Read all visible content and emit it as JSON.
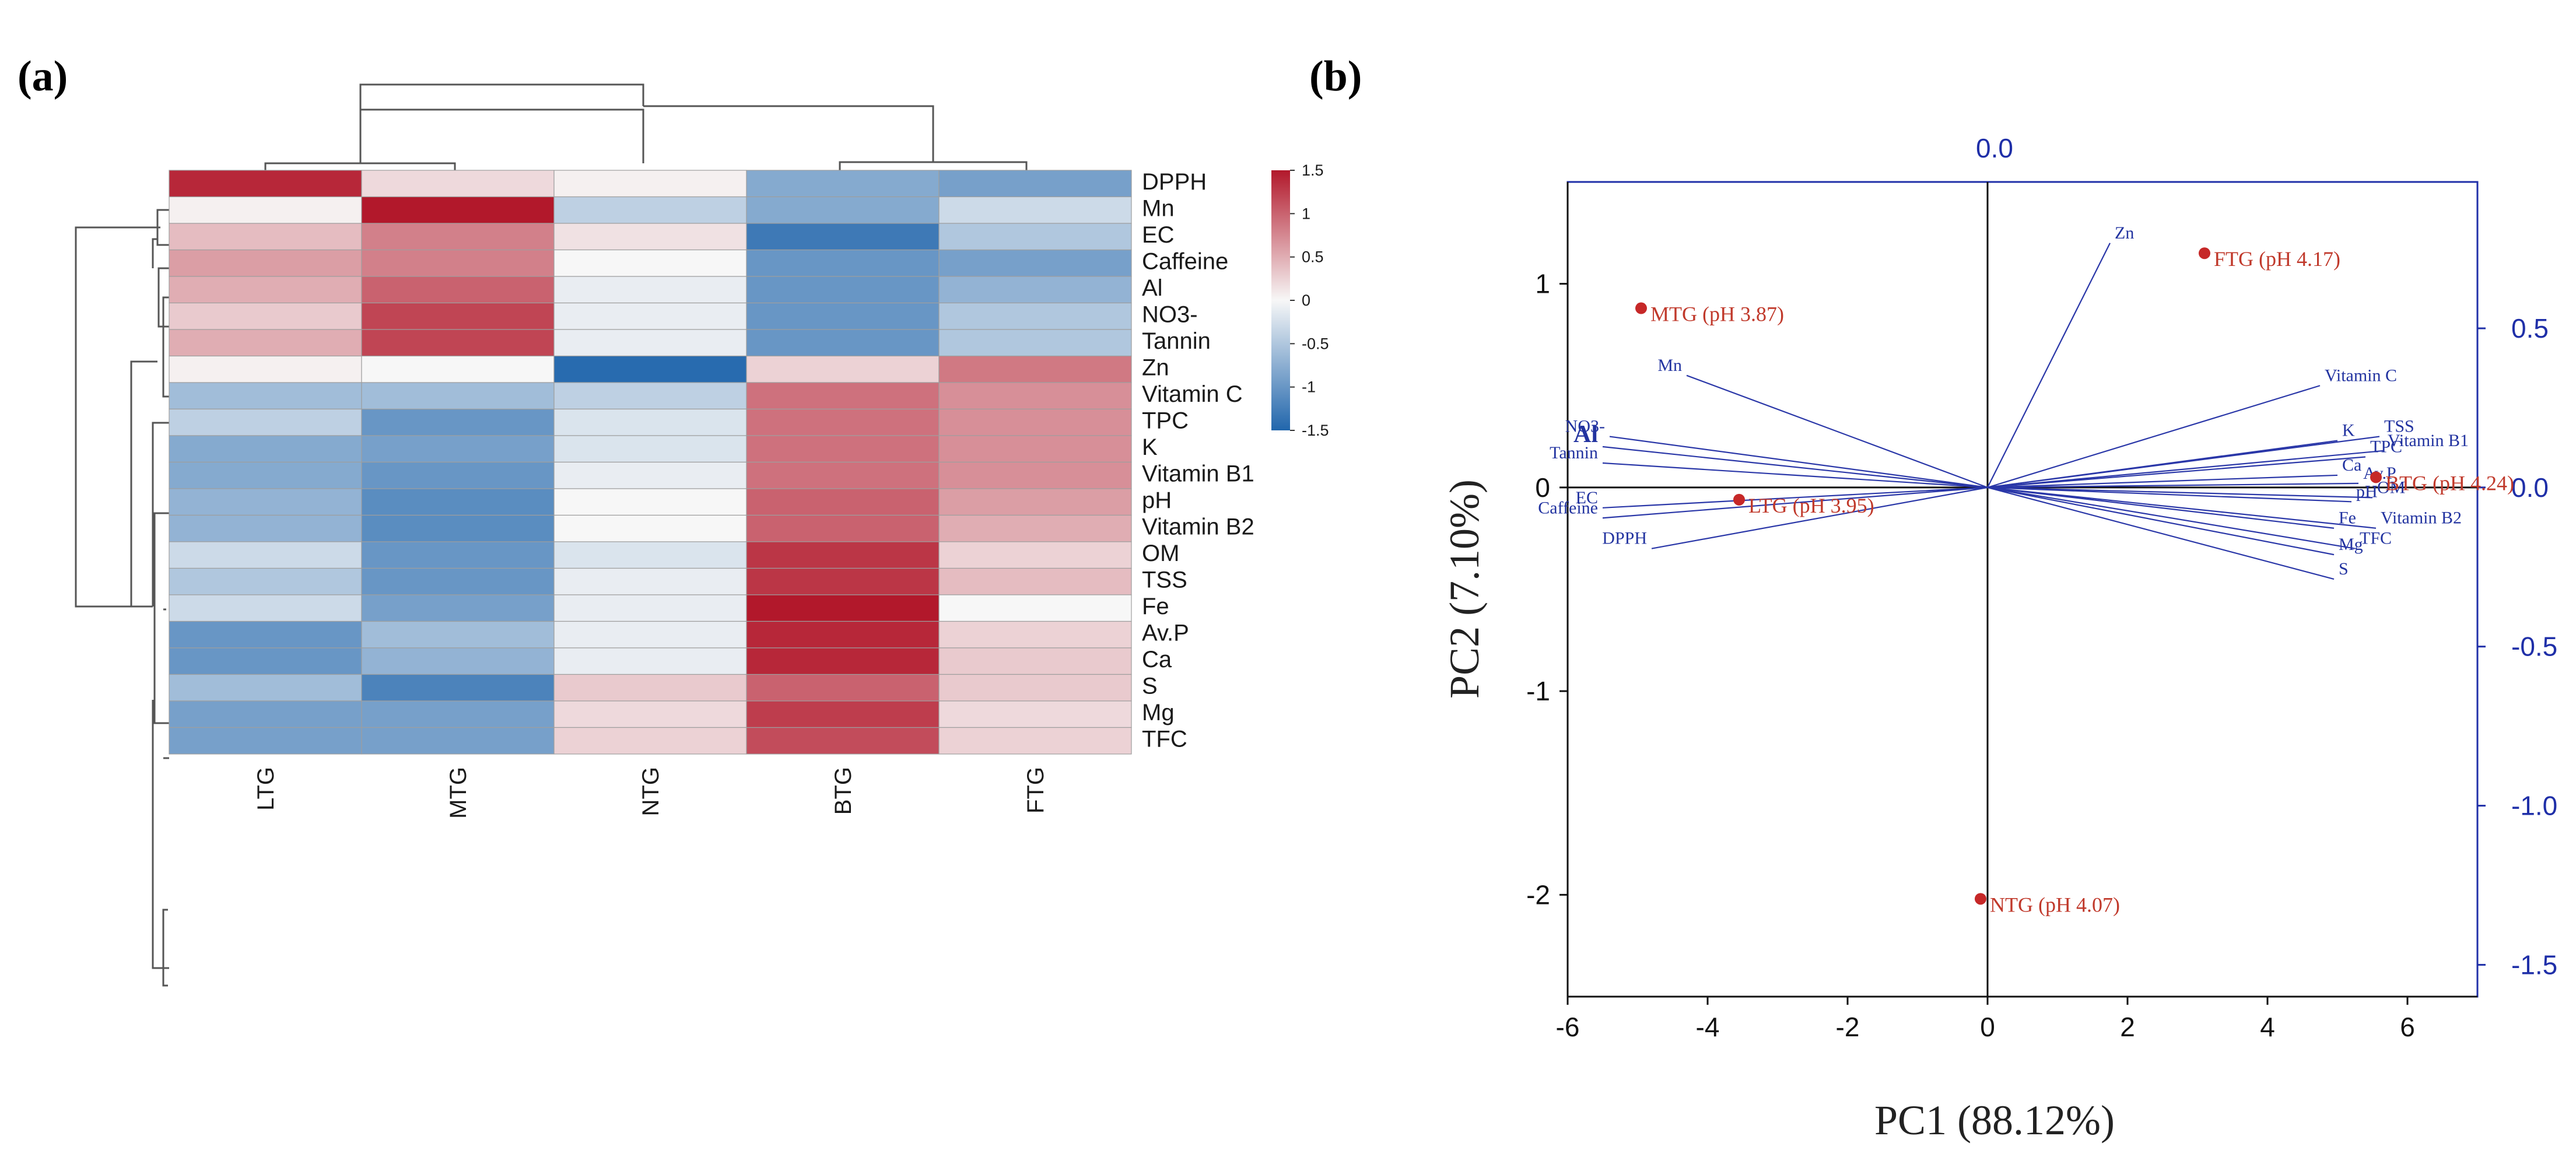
{
  "panels": {
    "a_label": "(a)",
    "b_label": "(b)"
  },
  "chart_data": [
    {
      "type": "heatmap",
      "title": "",
      "columns": [
        "LTG",
        "MTG",
        "NTG",
        "BTG",
        "FTG"
      ],
      "rows": [
        "DPPH",
        "Mn",
        "EC",
        "Caffeine",
        "Al",
        "NO3-",
        "Tannin",
        "Zn",
        "Vitamin C",
        "TPC",
        "K",
        "Vitamin B1",
        "pH",
        "Vitamin B2",
        "OM",
        "TSS",
        "Fe",
        "Av.P",
        "Ca",
        "S",
        "Mg",
        "TFC"
      ],
      "values": [
        [
          1.4,
          0.2,
          0.05,
          -0.8,
          -0.9
        ],
        [
          0.05,
          1.55,
          -0.4,
          -0.8,
          -0.3
        ],
        [
          0.4,
          0.8,
          0.15,
          -1.3,
          -0.5
        ],
        [
          0.6,
          0.8,
          0.0,
          -1.0,
          -0.9
        ],
        [
          0.5,
          1.0,
          -0.1,
          -1.0,
          -0.7
        ],
        [
          0.3,
          1.2,
          -0.1,
          -1.0,
          -0.5
        ],
        [
          0.5,
          1.2,
          -0.1,
          -1.0,
          -0.5
        ],
        [
          0.05,
          0.0,
          -1.45,
          0.25,
          0.85
        ],
        [
          -0.6,
          -0.6,
          -0.4,
          0.9,
          0.7
        ],
        [
          -0.4,
          -1.0,
          -0.2,
          0.9,
          0.7
        ],
        [
          -0.8,
          -0.9,
          -0.2,
          0.9,
          0.7
        ],
        [
          -0.8,
          -1.0,
          -0.1,
          0.9,
          0.7
        ],
        [
          -0.7,
          -1.1,
          0.0,
          1.0,
          0.6
        ],
        [
          -0.7,
          -1.1,
          0.0,
          1.0,
          0.5
        ],
        [
          -0.3,
          -1.0,
          -0.2,
          1.3,
          0.25
        ],
        [
          -0.5,
          -1.0,
          -0.1,
          1.3,
          0.4
        ],
        [
          -0.3,
          -0.9,
          -0.1,
          1.55,
          0.0
        ],
        [
          -1.0,
          -0.6,
          -0.1,
          1.4,
          0.25
        ],
        [
          -1.0,
          -0.7,
          -0.1,
          1.4,
          0.3
        ],
        [
          -0.6,
          -1.2,
          0.3,
          1.0,
          0.3
        ],
        [
          -0.9,
          -0.9,
          0.2,
          1.25,
          0.2
        ],
        [
          -0.9,
          -0.9,
          0.25,
          1.15,
          0.25
        ]
      ],
      "colorbar": {
        "min": -1.5,
        "max": 1.5,
        "ticks": [
          "1.5",
          "1",
          "0.5",
          "0",
          "-0.5",
          "-1",
          "-1.5"
        ],
        "low_color": "#2166ac",
        "mid_color": "#f7f7f7",
        "high_color": "#b2182b"
      }
    },
    {
      "type": "scatter",
      "subtype": "biplot",
      "title": "",
      "xlabel": "PC1 (88.12%)",
      "ylabel": "PC2 (7.10%)",
      "xlim": [
        -6,
        7
      ],
      "ylim": [
        -2.5,
        1.5
      ],
      "x_ticks": [
        "-6",
        "-4",
        "-2",
        "0",
        "2",
        "4",
        "6"
      ],
      "y_ticks": [
        "1",
        "0",
        "-1",
        "-2"
      ],
      "top_axis_label": "0.0",
      "right_axis": {
        "lim": [
          -1.6,
          0.96
        ],
        "ticks": [
          "0.5",
          "0.0",
          "-0.5",
          "-1.0",
          "-1.5"
        ]
      },
      "scores": [
        {
          "label": "MTG (pH 3.87)",
          "x": -4.95,
          "y": 0.88
        },
        {
          "label": "FTG (pH 4.17)",
          "x": 3.1,
          "y": 1.15
        },
        {
          "label": "LTG (pH 3.95)",
          "x": -3.55,
          "y": -0.06
        },
        {
          "label": "BTG (pH 4.24)",
          "x": 5.55,
          "y": 0.05
        },
        {
          "label": "NTG (pH 4.07)",
          "x": -0.1,
          "y": -2.02
        }
      ],
      "loadings": [
        {
          "label": "Zn",
          "x": 1.75,
          "y": 1.2
        },
        {
          "label": "Mn",
          "x": -4.3,
          "y": 0.55
        },
        {
          "label": "NO3-",
          "x": -5.4,
          "y": 0.25
        },
        {
          "label": "Al",
          "x": -5.5,
          "y": 0.2
        },
        {
          "label": "Tannin",
          "x": -5.5,
          "y": 0.12
        },
        {
          "label": "EC",
          "x": -5.5,
          "y": -0.1
        },
        {
          "label": "Caffeine",
          "x": -5.5,
          "y": -0.15
        },
        {
          "label": "DPPH",
          "x": -4.8,
          "y": -0.3
        },
        {
          "label": "Vitamin C",
          "x": 4.75,
          "y": 0.5
        },
        {
          "label": "TSS",
          "x": 5.6,
          "y": 0.25
        },
        {
          "label": "K",
          "x": 5.0,
          "y": 0.23
        },
        {
          "label": "Vitamin B1",
          "x": 5.65,
          "y": 0.18
        },
        {
          "label": "TPC",
          "x": 5.4,
          "y": 0.15
        },
        {
          "label": "Ca",
          "x": 5.0,
          "y": 0.06
        },
        {
          "label": "Av.P",
          "x": 5.3,
          "y": 0.02
        },
        {
          "label": "pH",
          "x": 5.2,
          "y": -0.07
        },
        {
          "label": "OM",
          "x": 5.5,
          "y": -0.05
        },
        {
          "label": "Fe",
          "x": 4.95,
          "y": -0.2
        },
        {
          "label": "Vitamin B2",
          "x": 5.55,
          "y": -0.2
        },
        {
          "label": "Mg",
          "x": 4.95,
          "y": -0.33
        },
        {
          "label": "TFC",
          "x": 5.25,
          "y": -0.3
        },
        {
          "label": "S",
          "x": 4.95,
          "y": -0.45
        }
      ]
    }
  ]
}
